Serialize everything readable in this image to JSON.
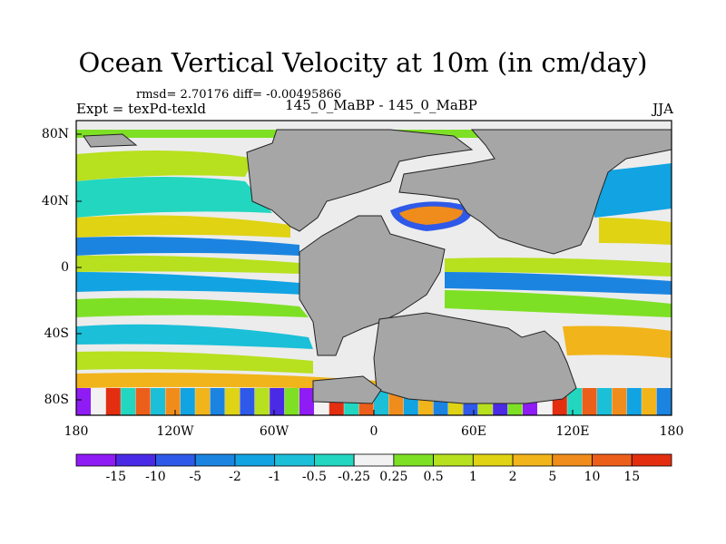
{
  "figure": {
    "title": "Ocean Vertical Velocity at 10m (in cm/day)",
    "stats": "rmsd= 2.70176 diff= -0.00495866",
    "left_label": "Expt = texPd-texld",
    "center_label": "145_0_MaBP - 145_0_MaBP",
    "right_label": "JJA"
  },
  "axes": {
    "lat_ticks": [
      "80N",
      "40N",
      "0",
      "40S",
      "80S"
    ],
    "lon_ticks": [
      "180",
      "120W",
      "60W",
      "0",
      "60E",
      "120E",
      "180"
    ]
  },
  "colorbar": {
    "labels": [
      "-15",
      "-10",
      "-5",
      "-2",
      "-1",
      "-0.5",
      "-0.25",
      "0.25",
      "0.5",
      "1",
      "2",
      "5",
      "10",
      "15"
    ],
    "colors": [
      "#8f1cf5",
      "#4b2ae6",
      "#2f59e8",
      "#1b84e0",
      "#11a3e2",
      "#1bbfd8",
      "#22d6c0",
      "#f2f2f2",
      "#7ee025",
      "#b7e01f",
      "#dfd314",
      "#f1b41a",
      "#f08c1c",
      "#ec5f1b",
      "#e32f10"
    ]
  },
  "colors": {
    "land": "#a6a6a6",
    "ocean_bg": "#ececec"
  }
}
